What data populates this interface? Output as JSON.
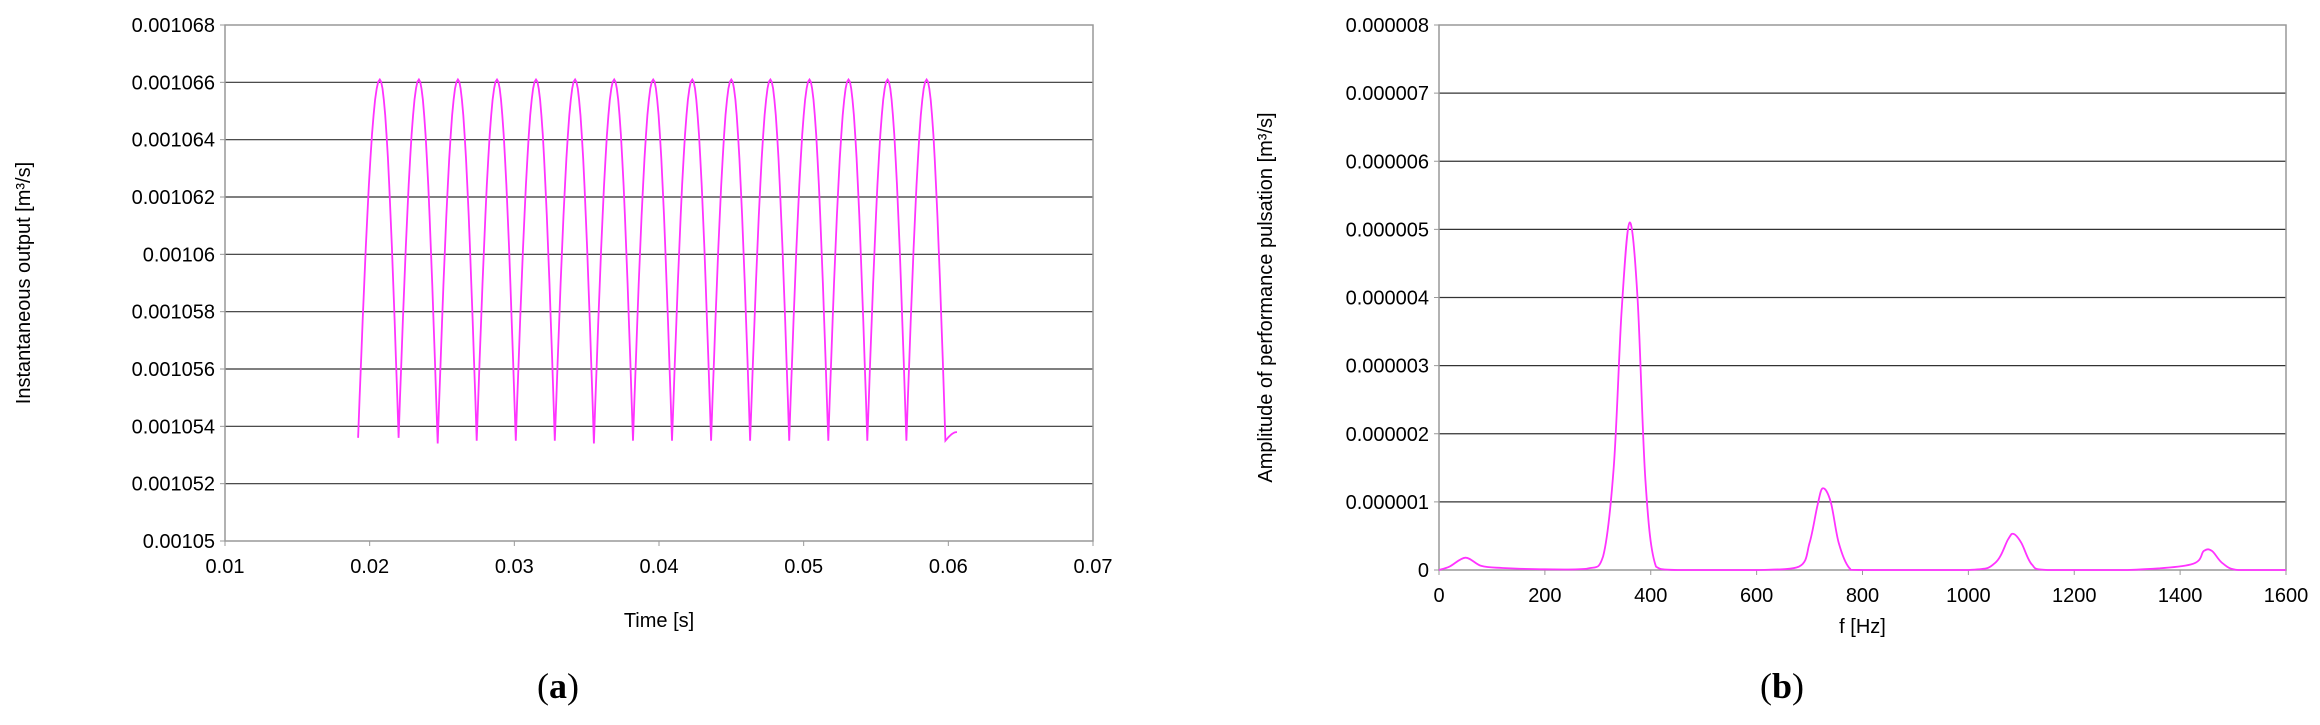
{
  "chart_data": [
    {
      "type": "line",
      "caption": {
        "open": "(",
        "letter": "a",
        "close": ")"
      },
      "xlabel": "Time  [s]",
      "ylabel": "Instantaneous  output  [m³/s]",
      "xlim": [
        0.01,
        0.07
      ],
      "ylim": [
        0.00105,
        0.001068
      ],
      "x_ticks": [
        0.01,
        0.02,
        0.03,
        0.04,
        0.05,
        0.06,
        0.07
      ],
      "x_tick_labels": [
        "0.01",
        "0.02",
        "0.03",
        "0.04",
        "0.05",
        "0.06",
        "0.07"
      ],
      "y_ticks": [
        0.00105,
        0.001052,
        0.001054,
        0.001056,
        0.001058,
        0.00106,
        0.001062,
        0.001064,
        0.001066,
        0.001068
      ],
      "y_tick_labels": [
        "0.00105",
        "0.001052",
        "0.001054",
        "0.001056",
        "0.001058",
        "0.00106",
        "0.001062",
        "0.001064",
        "0.001066",
        "0.001068"
      ],
      "grid": "horizontal",
      "line_color": "#ff33ff",
      "series": [
        {
          "x": [
            0.0192,
            0.0207,
            0.022,
            0.0234,
            0.0247,
            0.0261,
            0.0274,
            0.0288,
            0.0301,
            0.0315,
            0.0328,
            0.0342,
            0.0355,
            0.0369,
            0.0382,
            0.0396,
            0.0409,
            0.0423,
            0.0436,
            0.045,
            0.0463,
            0.0477,
            0.049,
            0.0504,
            0.0517,
            0.0531,
            0.0544,
            0.0558,
            0.0571,
            0.0585,
            0.0598,
            0.0606
          ],
          "y": [
            0.0010536,
            0.0010661,
            0.0010536,
            0.0010661,
            0.0010534,
            0.0010661,
            0.0010535,
            0.0010661,
            0.0010535,
            0.0010661,
            0.0010535,
            0.0010661,
            0.0010534,
            0.0010661,
            0.0010535,
            0.0010661,
            0.0010535,
            0.0010661,
            0.0010535,
            0.0010661,
            0.0010535,
            0.0010661,
            0.0010535,
            0.0010661,
            0.0010535,
            0.0010661,
            0.0010535,
            0.0010661,
            0.0010535,
            0.0010661,
            0.0010535,
            0.0010538
          ]
        }
      ]
    },
    {
      "type": "line",
      "caption": {
        "open": "(",
        "letter": "b",
        "close": ")"
      },
      "xlabel": "f [Hz]",
      "ylabel": "Amplitude  of performance pulsation  [m³/s]",
      "xlim": [
        0,
        1600
      ],
      "ylim": [
        0,
        8e-06
      ],
      "x_ticks": [
        0,
        200,
        400,
        600,
        800,
        1000,
        1200,
        1400,
        1600
      ],
      "x_tick_labels": [
        "0",
        "200",
        "400",
        "600",
        "800",
        "1000",
        "1200",
        "1400",
        "1600"
      ],
      "y_ticks": [
        0,
        1e-06,
        2e-06,
        3e-06,
        4e-06,
        5e-06,
        6e-06,
        7e-06,
        8e-06
      ],
      "y_tick_labels": [
        "0",
        "0.000001",
        "0.000002",
        "0.000003",
        "0.000004",
        "0.000005",
        "0.000006",
        "0.000007",
        "0.000008"
      ],
      "grid": "horizontal",
      "line_color": "#ff33ff",
      "series": [
        {
          "x": [
            0,
            20,
            50,
            80,
            120,
            200,
            280,
            310,
            330,
            345,
            360,
            375,
            390,
            410,
            450,
            600,
            680,
            700,
            715,
            725,
            740,
            755,
            775,
            800,
            1000,
            1050,
            1075,
            1085,
            1100,
            1120,
            1150,
            1300,
            1420,
            1445,
            1460,
            1480,
            1510,
            1600
          ],
          "y": [
            0,
            5e-08,
            1.8e-07,
            6e-08,
            3e-08,
            1e-08,
            2e-08,
            2e-07,
            1.5e-06,
            3.8e-06,
            5.1e-06,
            4e-06,
            1.3e-06,
            5e-08,
            0,
            0,
            5e-08,
            4e-07,
            9.5e-07,
            1.2e-06,
            1e-06,
            4e-07,
            3e-08,
            0,
            0,
            1e-07,
            4.5e-07,
            5.3e-07,
            4e-07,
            8e-08,
            0,
            0,
            8e-08,
            2.8e-07,
            2.8e-07,
            1e-07,
            0,
            0
          ]
        }
      ]
    }
  ]
}
